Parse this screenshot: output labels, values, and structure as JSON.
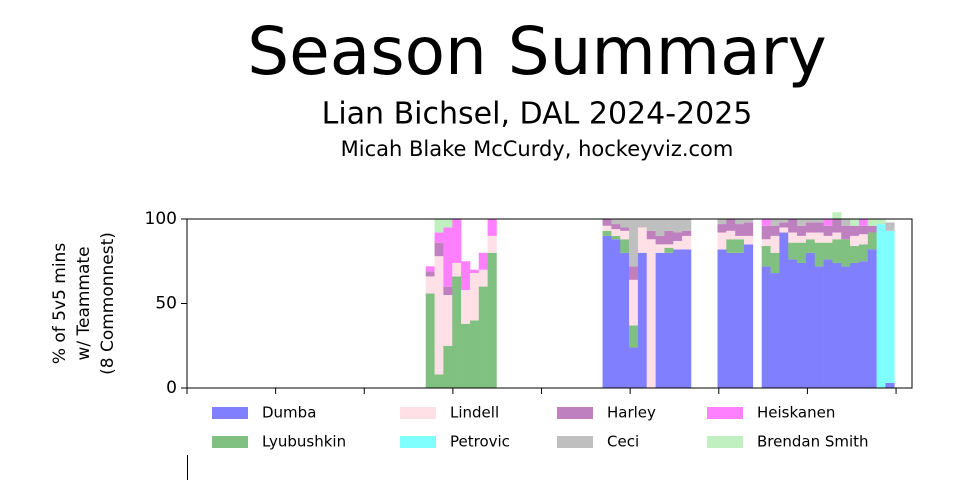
{
  "chart_data": {
    "type": "stacked_bar",
    "title": "Season Summary",
    "subtitle": "Lian Bichsel, DAL 2024-2025",
    "credit": "Micah Blake McCurdy, hockeyviz.com",
    "y_label": [
      "% of 5v5 mins",
      "w/ Teammate",
      "(8 Commonnest)"
    ],
    "x": [
      28,
      29,
      30,
      31,
      32,
      33,
      34,
      35,
      48,
      49,
      50,
      51,
      52,
      53,
      54,
      55,
      56,
      57,
      61,
      62,
      63,
      64,
      66,
      67,
      68,
      69,
      70,
      71,
      72,
      73,
      74,
      75,
      76,
      77,
      78,
      79,
      80
    ],
    "xlim": [
      0.5,
      82.5
    ],
    "ylim": [
      0,
      100
    ],
    "yticks": [
      0,
      50,
      100
    ],
    "series": [
      {
        "name": "Dumba",
        "color": "#8080ff",
        "values": [
          0,
          0,
          0,
          0,
          0,
          0,
          0,
          0,
          90,
          88,
          80,
          24,
          80,
          0,
          80,
          80,
          82,
          82,
          82,
          80,
          80,
          85,
          72,
          68,
          92,
          76,
          74,
          80,
          72,
          76,
          74,
          72,
          74,
          75,
          82,
          0,
          3
        ]
      },
      {
        "name": "Lyubushkin",
        "color": "#80c080",
        "values": [
          56,
          8,
          25,
          66,
          38,
          40,
          60,
          80,
          3,
          2,
          8,
          13,
          0,
          0,
          0,
          3,
          0,
          0,
          0,
          8,
          8,
          0,
          12,
          12,
          0,
          10,
          12,
          8,
          14,
          10,
          14,
          16,
          10,
          10,
          10,
          0,
          0
        ]
      },
      {
        "name": "Lindell",
        "color": "#ffe0e6",
        "values": [
          10,
          70,
          30,
          8,
          20,
          28,
          10,
          10,
          3,
          4,
          5,
          27,
          15,
          88,
          5,
          2,
          5,
          8,
          10,
          5,
          2,
          5,
          4,
          10,
          3,
          6,
          4,
          4,
          6,
          4,
          4,
          0,
          6,
          6,
          0,
          0,
          0
        ]
      },
      {
        "name": "Petrovic",
        "color": "#80ffff",
        "values": [
          0,
          0,
          0,
          0,
          0,
          0,
          0,
          0,
          0,
          0,
          0,
          0,
          0,
          0,
          0,
          0,
          0,
          0,
          0,
          0,
          0,
          0,
          0,
          0,
          0,
          0,
          0,
          0,
          0,
          0,
          0,
          0,
          0,
          0,
          0,
          97,
          90
        ]
      },
      {
        "name": "Harley",
        "color": "#bf80bf",
        "values": [
          3,
          8,
          5,
          0,
          0,
          0,
          0,
          0,
          4,
          3,
          2,
          8,
          0,
          5,
          5,
          8,
          5,
          3,
          5,
          7,
          7,
          8,
          8,
          6,
          3,
          8,
          6,
          6,
          6,
          6,
          8,
          8,
          6,
          5,
          4,
          0,
          0
        ]
      },
      {
        "name": "Ceci",
        "color": "#bfbfbf",
        "values": [
          0,
          0,
          0,
          0,
          0,
          0,
          0,
          0,
          0,
          3,
          5,
          28,
          5,
          7,
          10,
          7,
          8,
          7,
          3,
          0,
          3,
          2,
          0,
          4,
          2,
          0,
          4,
          2,
          2,
          0,
          0,
          4,
          0,
          0,
          0,
          0,
          5
        ]
      },
      {
        "name": "Heiskanen",
        "color": "#ff80ff",
        "values": [
          3,
          6,
          35,
          26,
          17,
          2,
          10,
          10,
          0,
          0,
          0,
          0,
          0,
          0,
          0,
          0,
          0,
          0,
          0,
          0,
          0,
          0,
          4,
          0,
          0,
          0,
          0,
          0,
          0,
          4,
          0,
          0,
          0,
          4,
          0,
          0,
          0
        ]
      },
      {
        "name": "Brendan Smith",
        "color": "#c0f0c0",
        "values": [
          0,
          8,
          5,
          0,
          0,
          0,
          0,
          0,
          0,
          0,
          0,
          0,
          0,
          0,
          0,
          0,
          0,
          0,
          0,
          0,
          0,
          0,
          0,
          0,
          0,
          0,
          0,
          0,
          0,
          0,
          4,
          0,
          4,
          0,
          4,
          3,
          0
        ]
      }
    ]
  }
}
